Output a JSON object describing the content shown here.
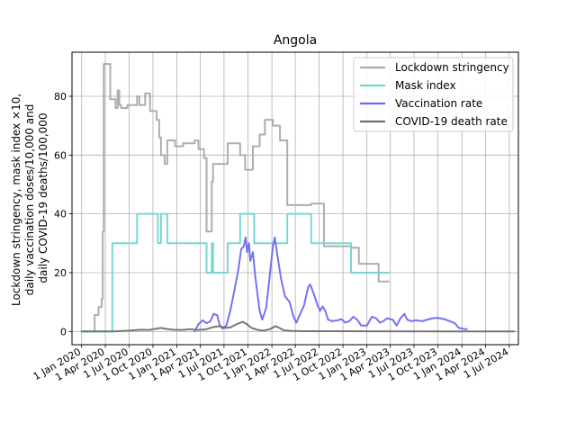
{
  "chart_data": {
    "type": "line",
    "title": "Angola",
    "ylabel_lines": [
      "Lockdown stringency, mask index ×10,",
      "daily vaccination doses/10,000 and",
      "daily COVID-19 deaths/100,000"
    ],
    "xlabel": "",
    "grid": true,
    "legend_position": "top-right",
    "xlim": [
      "2019-11-25",
      "2024-08-05"
    ],
    "ylim": [
      -4.5,
      95
    ],
    "x_ticks": [
      "2020-01-01",
      "2020-04-01",
      "2020-07-01",
      "2020-10-01",
      "2021-01-01",
      "2021-04-01",
      "2021-07-01",
      "2021-10-01",
      "2022-01-01",
      "2022-04-01",
      "2022-07-01",
      "2022-10-01",
      "2023-01-01",
      "2023-04-01",
      "2023-07-01",
      "2023-10-01",
      "2024-01-01",
      "2024-04-01",
      "2024-07-01"
    ],
    "x_tick_labels": [
      "1 Jan 2020",
      "1 Apr 2020",
      "1 Jul 2020",
      "1 Oct 2020",
      "1 Jan 2021",
      "1 Apr 2021",
      "1 Jul 2021",
      "1 Oct 2021",
      "1 Jan 2022",
      "1 Apr 2022",
      "1 Jul 2022",
      "1 Oct 2022",
      "1 Jan 2023",
      "1 Apr 2023",
      "1 Jul 2023",
      "1 Oct 2023",
      "1 Jan 2024",
      "1 Apr 2024",
      "1 Jul 2024"
    ],
    "y_ticks": [
      0,
      20,
      40,
      60,
      80
    ],
    "y_tick_labels": [
      "0",
      "20",
      "40",
      "60",
      "80"
    ],
    "series": [
      {
        "name": "Lockdown stringency",
        "color": "#aaaaaa",
        "step": true,
        "points": [
          [
            "2020-01-01",
            0
          ],
          [
            "2020-02-20",
            0
          ],
          [
            "2020-02-20",
            5.6
          ],
          [
            "2020-03-06",
            5.6
          ],
          [
            "2020-03-06",
            8.3
          ],
          [
            "2020-03-18",
            8.3
          ],
          [
            "2020-03-18",
            11
          ],
          [
            "2020-03-22",
            11
          ],
          [
            "2020-03-22",
            34
          ],
          [
            "2020-03-26",
            34
          ],
          [
            "2020-03-26",
            91
          ],
          [
            "2020-04-20",
            91
          ],
          [
            "2020-04-20",
            79
          ],
          [
            "2020-05-10",
            79
          ],
          [
            "2020-05-10",
            76
          ],
          [
            "2020-05-18",
            76
          ],
          [
            "2020-05-18",
            82
          ],
          [
            "2020-05-25",
            82
          ],
          [
            "2020-05-25",
            77
          ],
          [
            "2020-06-01",
            77
          ],
          [
            "2020-06-01",
            76
          ],
          [
            "2020-06-25",
            76
          ],
          [
            "2020-06-25",
            77
          ],
          [
            "2020-08-01",
            77
          ],
          [
            "2020-08-01",
            80
          ],
          [
            "2020-08-10",
            80
          ],
          [
            "2020-08-10",
            77
          ],
          [
            "2020-09-01",
            77
          ],
          [
            "2020-09-01",
            81
          ],
          [
            "2020-09-20",
            81
          ],
          [
            "2020-09-20",
            75
          ],
          [
            "2020-10-15",
            75
          ],
          [
            "2020-10-15",
            72
          ],
          [
            "2020-10-25",
            72
          ],
          [
            "2020-10-25",
            66
          ],
          [
            "2020-11-01",
            66
          ],
          [
            "2020-11-01",
            60
          ],
          [
            "2020-11-15",
            60
          ],
          [
            "2020-11-15",
            57
          ],
          [
            "2020-11-25",
            57
          ],
          [
            "2020-11-25",
            65
          ],
          [
            "2020-12-25",
            65
          ],
          [
            "2020-12-25",
            63
          ],
          [
            "2021-01-25",
            63
          ],
          [
            "2021-01-25",
            64
          ],
          [
            "2021-03-10",
            64
          ],
          [
            "2021-03-10",
            65
          ],
          [
            "2021-03-25",
            65
          ],
          [
            "2021-03-25",
            62
          ],
          [
            "2021-04-15",
            62
          ],
          [
            "2021-04-15",
            59
          ],
          [
            "2021-04-25",
            59
          ],
          [
            "2021-04-25",
            34
          ],
          [
            "2021-05-15",
            34
          ],
          [
            "2021-05-15",
            51
          ],
          [
            "2021-05-20",
            51
          ],
          [
            "2021-05-20",
            57
          ],
          [
            "2021-07-15",
            57
          ],
          [
            "2021-07-15",
            64
          ],
          [
            "2021-09-01",
            64
          ],
          [
            "2021-09-01",
            60
          ],
          [
            "2021-09-20",
            60
          ],
          [
            "2021-09-20",
            55
          ],
          [
            "2021-10-20",
            55
          ],
          [
            "2021-10-20",
            63
          ],
          [
            "2021-11-15",
            63
          ],
          [
            "2021-11-15",
            67
          ],
          [
            "2021-12-05",
            67
          ],
          [
            "2021-12-05",
            72
          ],
          [
            "2022-01-05",
            72
          ],
          [
            "2022-01-05",
            70
          ],
          [
            "2022-02-01",
            70
          ],
          [
            "2022-02-01",
            65
          ],
          [
            "2022-03-01",
            65
          ],
          [
            "2022-03-01",
            43
          ],
          [
            "2022-06-01",
            43
          ],
          [
            "2022-06-01",
            43.5
          ],
          [
            "2022-07-20",
            43.5
          ],
          [
            "2022-07-20",
            29
          ],
          [
            "2022-11-01",
            29
          ],
          [
            "2022-11-01",
            28.5
          ],
          [
            "2022-12-01",
            28.5
          ],
          [
            "2022-12-01",
            23
          ],
          [
            "2023-02-15",
            23
          ],
          [
            "2023-02-15",
            17
          ],
          [
            "2023-03-25",
            17
          ]
        ]
      },
      {
        "name": "Mask index",
        "color": "#6fd6d2",
        "step": true,
        "points": [
          [
            "2020-01-01",
            0
          ],
          [
            "2020-04-28",
            0
          ],
          [
            "2020-04-28",
            30
          ],
          [
            "2020-08-01",
            30
          ],
          [
            "2020-08-01",
            40
          ],
          [
            "2020-10-20",
            40
          ],
          [
            "2020-10-20",
            30
          ],
          [
            "2020-11-01",
            30
          ],
          [
            "2020-11-01",
            40
          ],
          [
            "2020-11-25",
            40
          ],
          [
            "2020-11-25",
            30
          ],
          [
            "2021-04-25",
            30
          ],
          [
            "2021-04-25",
            20
          ],
          [
            "2021-05-15",
            20
          ],
          [
            "2021-05-15",
            30
          ],
          [
            "2021-05-20",
            30
          ],
          [
            "2021-05-20",
            20
          ],
          [
            "2021-07-15",
            20
          ],
          [
            "2021-07-15",
            30
          ],
          [
            "2021-09-01",
            30
          ],
          [
            "2021-09-01",
            40
          ],
          [
            "2021-10-25",
            40
          ],
          [
            "2021-10-25",
            30
          ],
          [
            "2022-03-01",
            30
          ],
          [
            "2022-03-01",
            40
          ],
          [
            "2022-06-01",
            40
          ],
          [
            "2022-06-01",
            30
          ],
          [
            "2022-11-01",
            30
          ],
          [
            "2022-11-01",
            20
          ],
          [
            "2023-03-25",
            20
          ]
        ]
      },
      {
        "name": "Vaccination rate",
        "color": "#6b6bf0",
        "step": false,
        "points": [
          [
            "2021-03-10",
            0
          ],
          [
            "2021-03-25",
            2.5
          ],
          [
            "2021-04-10",
            3.8
          ],
          [
            "2021-04-25",
            2.8
          ],
          [
            "2021-05-10",
            3.5
          ],
          [
            "2021-05-22",
            6
          ],
          [
            "2021-06-05",
            5.5
          ],
          [
            "2021-06-15",
            2
          ],
          [
            "2021-06-25",
            1
          ],
          [
            "2021-07-10",
            2
          ],
          [
            "2021-07-25",
            7
          ],
          [
            "2021-08-10",
            14
          ],
          [
            "2021-08-25",
            21
          ],
          [
            "2021-09-05",
            28
          ],
          [
            "2021-09-15",
            29
          ],
          [
            "2021-09-22",
            32
          ],
          [
            "2021-09-28",
            27
          ],
          [
            "2021-10-05",
            30
          ],
          [
            "2021-10-10",
            24
          ],
          [
            "2021-10-20",
            27
          ],
          [
            "2021-10-30",
            18
          ],
          [
            "2021-11-15",
            7
          ],
          [
            "2021-11-25",
            4
          ],
          [
            "2021-12-10",
            8
          ],
          [
            "2021-12-25",
            20
          ],
          [
            "2022-01-05",
            29
          ],
          [
            "2022-01-12",
            32
          ],
          [
            "2022-01-22",
            26
          ],
          [
            "2022-02-05",
            18
          ],
          [
            "2022-02-20",
            12
          ],
          [
            "2022-03-10",
            10
          ],
          [
            "2022-03-25",
            5
          ],
          [
            "2022-04-05",
            3
          ],
          [
            "2022-04-20",
            6
          ],
          [
            "2022-05-05",
            9
          ],
          [
            "2022-05-20",
            15
          ],
          [
            "2022-05-28",
            16
          ],
          [
            "2022-06-10",
            13
          ],
          [
            "2022-06-25",
            9
          ],
          [
            "2022-07-05",
            7
          ],
          [
            "2022-07-15",
            8.5
          ],
          [
            "2022-07-25",
            7
          ],
          [
            "2022-08-05",
            4
          ],
          [
            "2022-08-20",
            3.5
          ],
          [
            "2022-09-10",
            3.8
          ],
          [
            "2022-09-25",
            4.2
          ],
          [
            "2022-10-10",
            3
          ],
          [
            "2022-10-25",
            3.5
          ],
          [
            "2022-11-10",
            5
          ],
          [
            "2022-11-25",
            4
          ],
          [
            "2022-12-10",
            2
          ],
          [
            "2023-01-01",
            2
          ],
          [
            "2023-01-20",
            5
          ],
          [
            "2023-02-05",
            4.5
          ],
          [
            "2023-02-20",
            3
          ],
          [
            "2023-03-05",
            3.5
          ],
          [
            "2023-03-20",
            4.5
          ],
          [
            "2023-04-10",
            4
          ],
          [
            "2023-04-25",
            2
          ],
          [
            "2023-05-10",
            4.5
          ],
          [
            "2023-05-25",
            6
          ],
          [
            "2023-06-05",
            4
          ],
          [
            "2023-06-20",
            3.5
          ],
          [
            "2023-07-10",
            3.8
          ],
          [
            "2023-08-01",
            3.5
          ],
          [
            "2023-08-20",
            4
          ],
          [
            "2023-09-10",
            4.5
          ],
          [
            "2023-10-01",
            4.6
          ],
          [
            "2023-10-25",
            4.2
          ],
          [
            "2023-11-15",
            3.5
          ],
          [
            "2023-12-05",
            2.8
          ],
          [
            "2023-12-20",
            1.2
          ],
          [
            "2024-01-15",
            0.8
          ],
          [
            "2024-01-20",
            0.8
          ]
        ]
      },
      {
        "name": "COVID-19 death rate",
        "color": "#707070",
        "step": false,
        "points": [
          [
            "2020-01-01",
            0
          ],
          [
            "2020-05-01",
            0
          ],
          [
            "2020-07-01",
            0.3
          ],
          [
            "2020-08-15",
            0.6
          ],
          [
            "2020-09-15",
            0.5
          ],
          [
            "2020-10-10",
            0.9
          ],
          [
            "2020-11-01",
            1.2
          ],
          [
            "2020-11-20",
            0.9
          ],
          [
            "2020-12-20",
            0.6
          ],
          [
            "2021-01-20",
            0.5
          ],
          [
            "2021-02-20",
            0.8
          ],
          [
            "2021-03-20",
            0.5
          ],
          [
            "2021-04-20",
            0.7
          ],
          [
            "2021-05-20",
            1.5
          ],
          [
            "2021-06-15",
            1.8
          ],
          [
            "2021-07-05",
            1.2
          ],
          [
            "2021-07-25",
            1.4
          ],
          [
            "2021-08-20",
            2.5
          ],
          [
            "2021-09-10",
            3.3
          ],
          [
            "2021-09-25",
            2.6
          ],
          [
            "2021-10-15",
            1.2
          ],
          [
            "2021-11-10",
            0.5
          ],
          [
            "2021-12-01",
            0.3
          ],
          [
            "2021-12-25",
            0.8
          ],
          [
            "2022-01-15",
            1.8
          ],
          [
            "2022-01-30",
            1.2
          ],
          [
            "2022-02-15",
            0.4
          ],
          [
            "2022-03-15",
            0.2
          ],
          [
            "2022-05-01",
            0.1
          ],
          [
            "2022-08-01",
            0.1
          ],
          [
            "2023-01-01",
            0.05
          ],
          [
            "2024-01-01",
            0
          ],
          [
            "2024-07-20",
            0
          ]
        ]
      }
    ]
  }
}
